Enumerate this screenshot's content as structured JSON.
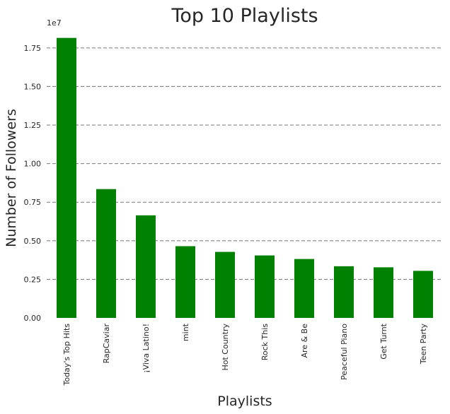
{
  "chart_data": {
    "type": "bar",
    "title": "Top 10 Playlists",
    "xlabel": "Playlists",
    "ylabel": "Number of Followers",
    "y_offset_label": "1e7",
    "y_scale": 10000000,
    "ylim": [
      0,
      1.85
    ],
    "yticks": [
      0.0,
      0.25,
      0.5,
      0.75,
      1.0,
      1.25,
      1.5,
      1.75
    ],
    "ytick_labels": [
      "0.00",
      "0.25",
      "0.50",
      "0.75",
      "1.00",
      "1.25",
      "1.50",
      "1.75"
    ],
    "grid": true,
    "categories": [
      "Today's Top Hits",
      "RapCaviar",
      "¡Viva Latino!",
      "mint",
      "Hot Country",
      "Rock This",
      "Are & Be",
      "Peaceful Piano",
      "Get Turnt",
      "Teen Party"
    ],
    "values": [
      18150000,
      8350000,
      6650000,
      4650000,
      4280000,
      4050000,
      3820000,
      3350000,
      3280000,
      3050000
    ],
    "bar_color": "#008000"
  }
}
